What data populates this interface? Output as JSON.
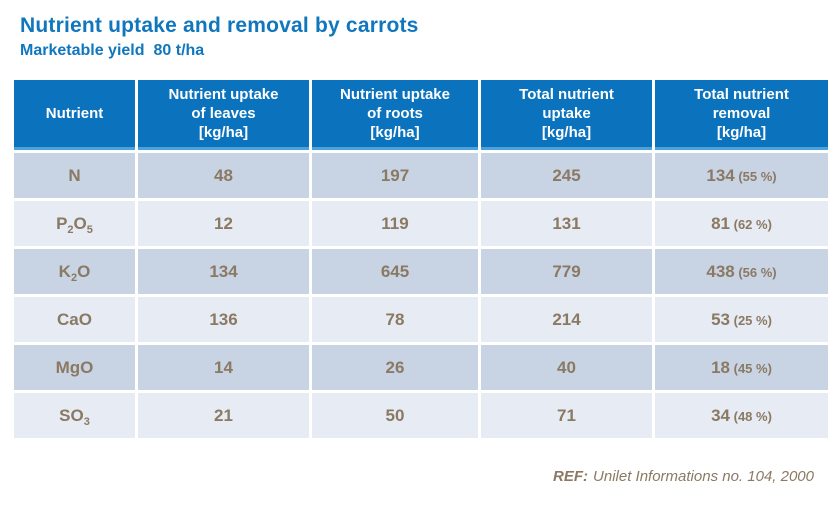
{
  "page": {
    "title": "Nutrient uptake and removal by carrots",
    "subtitle_text": "Marketable yield",
    "subtitle_value": "80 t/ha"
  },
  "colors": {
    "title_blue": "#1077BE",
    "header_bg": "#0B73BD",
    "header_edge": "#4CA2DC",
    "row_dark": "#C8D4E4",
    "row_light": "#E7EBF3",
    "cell_text_brown": "#8A7963"
  },
  "table": {
    "headers": [
      {
        "lines": [
          "Nutrient"
        ]
      },
      {
        "lines": [
          "Nutrient uptake",
          "of leaves",
          "[kg/ha]"
        ]
      },
      {
        "lines": [
          "Nutrient uptake",
          "of roots",
          "[kg/ha]"
        ]
      },
      {
        "lines": [
          "Total nutrient",
          "uptake",
          "[kg/ha]"
        ]
      },
      {
        "lines": [
          "Total nutrient",
          "removal",
          "[kg/ha]"
        ]
      }
    ],
    "rows": [
      {
        "nutrient": [
          {
            "text": "N"
          }
        ],
        "leaves": "48",
        "roots": "197",
        "total_uptake": "245",
        "removal": "134",
        "removal_pct": "(55 %)"
      },
      {
        "nutrient": [
          {
            "text": "P"
          },
          {
            "text": "2",
            "sub": true
          },
          {
            "text": "O"
          },
          {
            "text": "5",
            "sub": true
          }
        ],
        "leaves": "12",
        "roots": "119",
        "total_uptake": "131",
        "removal": "81",
        "removal_pct": "(62 %)"
      },
      {
        "nutrient": [
          {
            "text": "K"
          },
          {
            "text": "2",
            "sub": true
          },
          {
            "text": "O"
          }
        ],
        "leaves": "134",
        "roots": "645",
        "total_uptake": "779",
        "removal": "438",
        "removal_pct": "(56 %)"
      },
      {
        "nutrient": [
          {
            "text": "CaO"
          }
        ],
        "leaves": "136",
        "roots": "78",
        "total_uptake": "214",
        "removal": "53",
        "removal_pct": "(25 %)"
      },
      {
        "nutrient": [
          {
            "text": "MgO"
          }
        ],
        "leaves": "14",
        "roots": "26",
        "total_uptake": "40",
        "removal": "18",
        "removal_pct": "(45 %)"
      },
      {
        "nutrient": [
          {
            "text": "SO"
          },
          {
            "text": "3",
            "sub": true
          }
        ],
        "leaves": "21",
        "roots": "50",
        "total_uptake": "71",
        "removal": "34",
        "removal_pct": "(48 %)"
      }
    ]
  },
  "footer": {
    "ref_label": "REF:",
    "ref_text": "Unilet Informations no. 104, 2000"
  }
}
